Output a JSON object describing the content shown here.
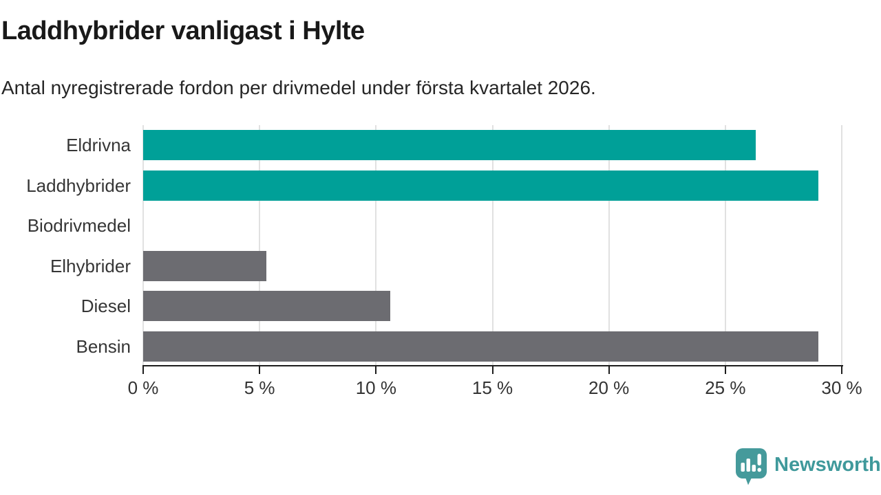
{
  "header": {
    "title": "Laddhybrider vanligast i Hylte",
    "subtitle": "Antal nyregistrerade fordon per drivmedel under första kvartalet 2026."
  },
  "chart_data": {
    "type": "bar",
    "orientation": "horizontal",
    "title": "Laddhybrider vanligast i Hylte",
    "subtitle": "Antal nyregistrerade fordon per drivmedel under första kvartalet 2026.",
    "categories": [
      "Eldrivna",
      "Laddhybrider",
      "Biodrivmedel",
      "Elhybrider",
      "Diesel",
      "Bensin"
    ],
    "values": [
      26.3,
      29.0,
      0,
      5.3,
      10.6,
      29.0
    ],
    "unit": "%",
    "xlim": [
      0,
      30
    ],
    "x_ticks": [
      0,
      5,
      10,
      15,
      20,
      25,
      30
    ],
    "x_tick_suffix": " %",
    "bar_color_keys": [
      "teal",
      "teal",
      "teal",
      "gray",
      "gray",
      "gray"
    ],
    "colors": {
      "teal": "#00a098",
      "gray": "#6c6c71"
    },
    "grid": "vertical-light",
    "legend": "none"
  },
  "branding": {
    "logo_text": "Newsworthy",
    "logo_color": "#459a9b",
    "logo_text_color": "#3f999b",
    "logo_icon": "speech-bubble-bar-chart-exclamation"
  }
}
